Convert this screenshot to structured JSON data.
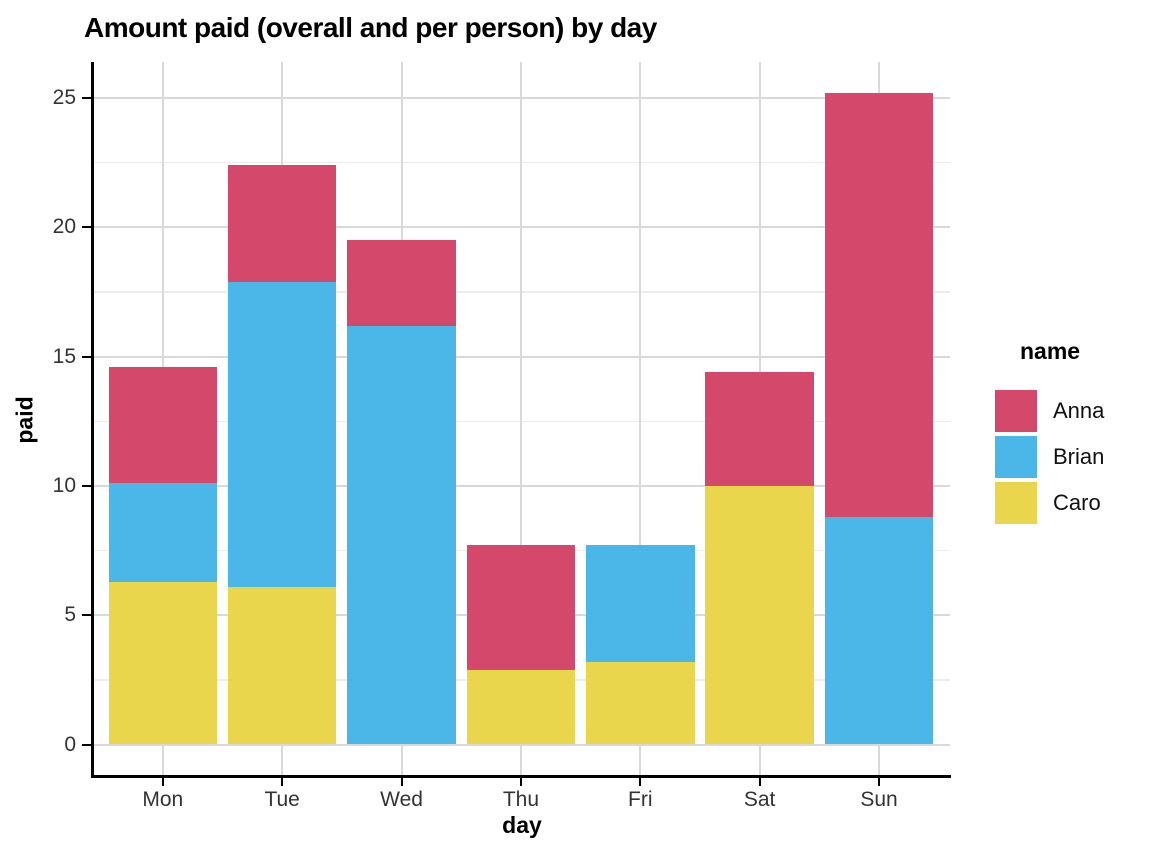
{
  "title": "Amount paid (overall and per person) by day",
  "axes": {
    "x": {
      "label": "day",
      "ticks": [
        "Mon",
        "Tue",
        "Wed",
        "Thu",
        "Fri",
        "Sat",
        "Sun"
      ]
    },
    "y": {
      "label": "paid",
      "ticks": [
        0,
        5,
        10,
        15,
        20,
        25
      ],
      "minor_ticks": [
        2.5,
        7.5,
        12.5,
        17.5,
        22.5
      ]
    }
  },
  "legend": {
    "title": "name",
    "position": "right"
  },
  "chart_data": {
    "type": "bar",
    "stacked": true,
    "title": "Amount paid (overall and per person) by day",
    "xlabel": "day",
    "ylabel": "paid",
    "categories": [
      "Mon",
      "Tue",
      "Wed",
      "Thu",
      "Fri",
      "Sat",
      "Sun"
    ],
    "series": [
      {
        "name": "Anna",
        "color": "#D4496B",
        "values": [
          4.5,
          4.5,
          3.3,
          4.8,
          0,
          4.4,
          16.4
        ]
      },
      {
        "name": "Brian",
        "color": "#4BB7E8",
        "values": [
          3.8,
          11.8,
          16.2,
          0,
          4.5,
          0,
          8.8
        ]
      },
      {
        "name": "Caro",
        "color": "#EAD64D",
        "values": [
          6.3,
          6.1,
          0,
          2.9,
          3.2,
          10.0,
          0
        ]
      }
    ],
    "stack_order_bottom_to_top": [
      "Caro",
      "Brian",
      "Anna"
    ],
    "stack_totals": [
      14.6,
      22.4,
      19.5,
      7.7,
      7.7,
      14.4,
      25.2
    ],
    "ylim": [
      0,
      25.2
    ],
    "y_axis_ticks": [
      0,
      5,
      10,
      15,
      20,
      25
    ],
    "grid": "horizontal major+minor, vertical major at categories",
    "legend_title": "name",
    "legend_position": "right"
  },
  "colors": {
    "background": "#FFFFFF",
    "axis_line": "#000000",
    "tick_label": "#333333",
    "grid_major": "#D9D9D9",
    "grid_minor": "#ECECEC",
    "title_text": "#000000"
  }
}
